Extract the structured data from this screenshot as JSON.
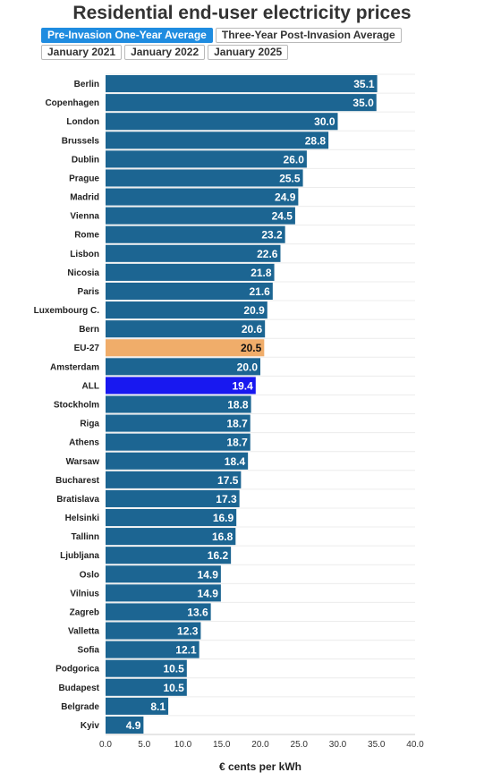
{
  "header": {
    "title": "Residential end-user electricity prices"
  },
  "tabs": {
    "row1": [
      {
        "label": "Pre-Invasion One-Year Average",
        "active": true
      },
      {
        "label": "Three-Year Post-Invasion Average",
        "active": false
      }
    ],
    "row2": [
      {
        "label": "January 2021",
        "active": false
      },
      {
        "label": "January 2022",
        "active": false
      },
      {
        "label": "January 2025",
        "active": false
      }
    ]
  },
  "colors": {
    "bar": "#1c6592",
    "eu_highlight": "#f0ad6a",
    "all_highlight": "#1818f0",
    "active_tab": "#1f8ce0"
  },
  "chart_data": {
    "type": "bar",
    "orientation": "horizontal",
    "xlabel": "€ cents per kWh",
    "xlim": [
      0,
      40
    ],
    "xticks": [
      "0.0",
      "5.0",
      "10.0",
      "15.0",
      "20.0",
      "25.0",
      "30.0",
      "35.0",
      "40.0"
    ],
    "grid": true,
    "categories": [
      "Berlin",
      "Copenhagen",
      "London",
      "Brussels",
      "Dublin",
      "Prague",
      "Madrid",
      "Vienna",
      "Rome",
      "Lisbon",
      "Nicosia",
      "Paris",
      "Luxembourg C.",
      "Bern",
      "EU-27",
      "Amsterdam",
      "ALL",
      "Stockholm",
      "Riga",
      "Athens",
      "Warsaw",
      "Bucharest",
      "Bratislava",
      "Helsinki",
      "Tallinn",
      "Ljubljana",
      "Oslo",
      "Vilnius",
      "Zagreb",
      "Valletta",
      "Sofia",
      "Podgorica",
      "Budapest",
      "Belgrade",
      "Kyiv"
    ],
    "values": [
      35.1,
      35.0,
      30.0,
      28.8,
      26.0,
      25.5,
      24.9,
      24.5,
      23.2,
      22.6,
      21.8,
      21.6,
      20.9,
      20.6,
      20.5,
      20.0,
      19.4,
      18.8,
      18.7,
      18.7,
      18.4,
      17.5,
      17.3,
      16.9,
      16.8,
      16.2,
      14.9,
      14.9,
      13.6,
      12.3,
      12.1,
      10.5,
      10.5,
      8.1,
      4.9
    ],
    "labels": [
      "35.1",
      "35.0",
      "30.0",
      "28.8",
      "26.0",
      "25.5",
      "24.9",
      "24.5",
      "23.2",
      "22.6",
      "21.8",
      "21.6",
      "20.9",
      "20.6",
      "20.5",
      "20.0",
      "19.4",
      "18.8",
      "18.7",
      "18.7",
      "18.4",
      "17.5",
      "17.3",
      "16.9",
      "16.8",
      "16.2",
      "14.9",
      "14.9",
      "13.6",
      "12.3",
      "12.1",
      "10.5",
      "10.5",
      "8.1",
      "4.9"
    ],
    "highlights": {
      "EU-27": "eu_highlight",
      "ALL": "all_highlight"
    }
  }
}
